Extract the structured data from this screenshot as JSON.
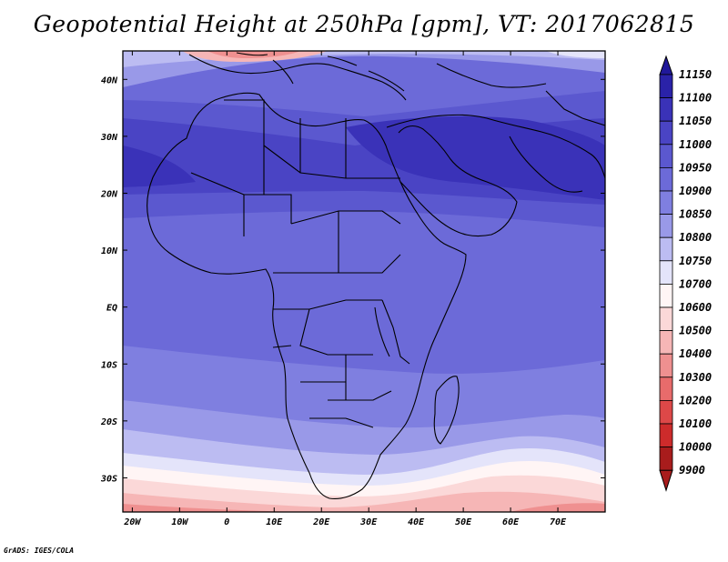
{
  "title": "Geopotential Height at 250hPa [gpm], VT: 2017062815",
  "credit": "GrADS: IGES/COLA",
  "map": {
    "lat_labels": [
      "40N",
      "30N",
      "20N",
      "10N",
      "EQ",
      "10S",
      "20S",
      "30S"
    ],
    "lat_values": [
      40,
      30,
      20,
      10,
      0,
      -10,
      -20,
      -30
    ],
    "lon_labels": [
      "20W",
      "10W",
      "0",
      "10E",
      "20E",
      "30E",
      "40E",
      "50E",
      "60E",
      "70E"
    ],
    "lon_values": [
      -20,
      -10,
      0,
      10,
      20,
      30,
      40,
      50,
      60,
      70
    ],
    "lon_range": [
      -22,
      80
    ],
    "lat_range": [
      -36,
      45
    ]
  },
  "colorbar": {
    "levels": [
      "11150",
      "11100",
      "11050",
      "11000",
      "10950",
      "10900",
      "10850",
      "10800",
      "10750",
      "10700",
      "10600",
      "10500",
      "10400",
      "10300",
      "10200",
      "10100",
      "10000",
      "9900"
    ],
    "colors": [
      "#20189a",
      "#2a22a8",
      "#3a32b8",
      "#4a44c4",
      "#5b58cf",
      "#6c6ad8",
      "#7f7fe0",
      "#9999e8",
      "#bcbcf2",
      "#e4e4fa",
      "#fff5f5",
      "#fbd8d8",
      "#f6b6b6",
      "#ef9090",
      "#e86b6b",
      "#dd4848",
      "#cd2b2b",
      "#a81c1c"
    ]
  },
  "colors": {
    "land_outline": "#000000",
    "field_base": "#6c6ad8"
  }
}
